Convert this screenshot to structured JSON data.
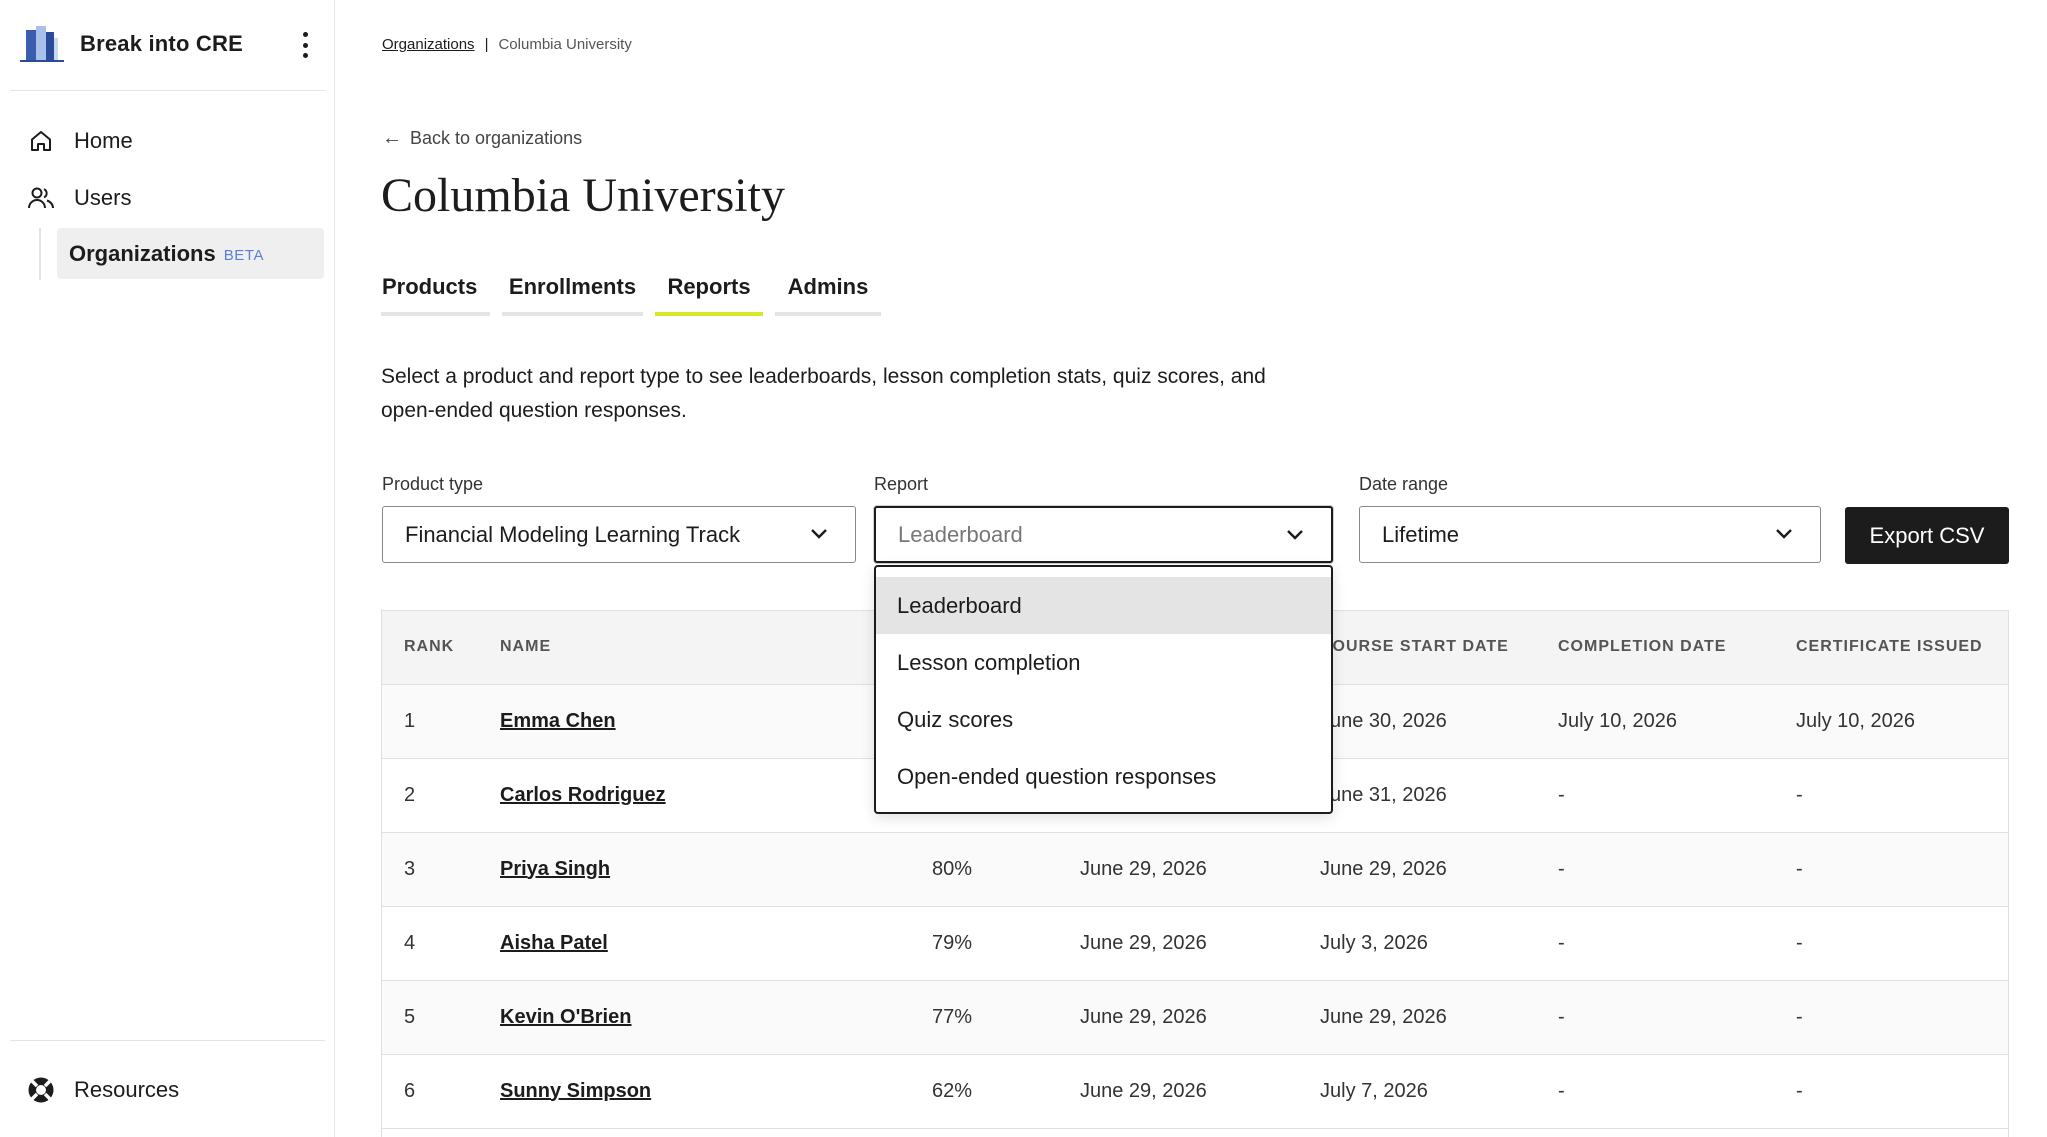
{
  "sidebar": {
    "brand_name": "Break into CRE",
    "items": [
      {
        "label": "Home",
        "icon": "home-icon"
      },
      {
        "label": "Users",
        "icon": "users-icon"
      }
    ],
    "organizations": {
      "label": "Organizations",
      "badge": "BETA"
    },
    "resources": {
      "label": "Resources",
      "icon": "lifebuoy-icon"
    }
  },
  "breadcrumb": {
    "parent": "Organizations",
    "separator": "|",
    "current": "Columbia University"
  },
  "back_link": "Back to organizations",
  "page_title": "Columbia University",
  "tabs": [
    {
      "label": "Products",
      "active": false
    },
    {
      "label": "Enrollments",
      "active": false
    },
    {
      "label": "Reports",
      "active": true
    },
    {
      "label": "Admins",
      "active": false
    }
  ],
  "description": "Select a product and report type to see leaderboards, lesson completion stats, quiz scores, and open-ended question responses.",
  "filters": {
    "product_type": {
      "label": "Product type",
      "value": "Financial Modeling Learning Track"
    },
    "report": {
      "label": "Report",
      "value": "Leaderboard"
    },
    "date_range": {
      "label": "Date range",
      "value": "Lifetime"
    }
  },
  "export_button": "Export CSV",
  "report_dropdown": {
    "options": [
      "Leaderboard",
      "Lesson completion",
      "Quiz scores",
      "Open-ended question responses"
    ],
    "selected": "Leaderboard"
  },
  "table": {
    "headers": [
      "RANK",
      "NAME",
      "",
      "",
      "COURSE START DATE",
      "COMPLETION DATE",
      "CERTIFICATE ISSUED"
    ],
    "rows": [
      {
        "rank": "1",
        "name": "Emma Chen",
        "progress": "",
        "enrolled": "",
        "start": "June 30, 2026",
        "completion": "July 10, 2026",
        "certificate": "July 10, 2026"
      },
      {
        "rank": "2",
        "name": "Carlos Rodriguez",
        "progress": "",
        "enrolled": "",
        "start": "June 31, 2026",
        "completion": "-",
        "certificate": "-"
      },
      {
        "rank": "3",
        "name": "Priya Singh",
        "progress": "80%",
        "enrolled": "June 29, 2026",
        "start": "June 29, 2026",
        "completion": "-",
        "certificate": "-"
      },
      {
        "rank": "4",
        "name": "Aisha Patel",
        "progress": "79%",
        "enrolled": "June 29, 2026",
        "start": "July 3, 2026",
        "completion": "-",
        "certificate": "-"
      },
      {
        "rank": "5",
        "name": "Kevin O'Brien",
        "progress": "77%",
        "enrolled": "June 29, 2026",
        "start": "June 29, 2026",
        "completion": "-",
        "certificate": "-"
      },
      {
        "rank": "6",
        "name": "Sunny Simpson",
        "progress": "62%",
        "enrolled": "June 29, 2026",
        "start": "July 7, 2026",
        "completion": "-",
        "certificate": "-"
      }
    ]
  },
  "colors": {
    "tab_active_underline": "#d6e82a",
    "beta_badge": "#5a7fd6",
    "export_button_bg": "#1c1c1c"
  }
}
